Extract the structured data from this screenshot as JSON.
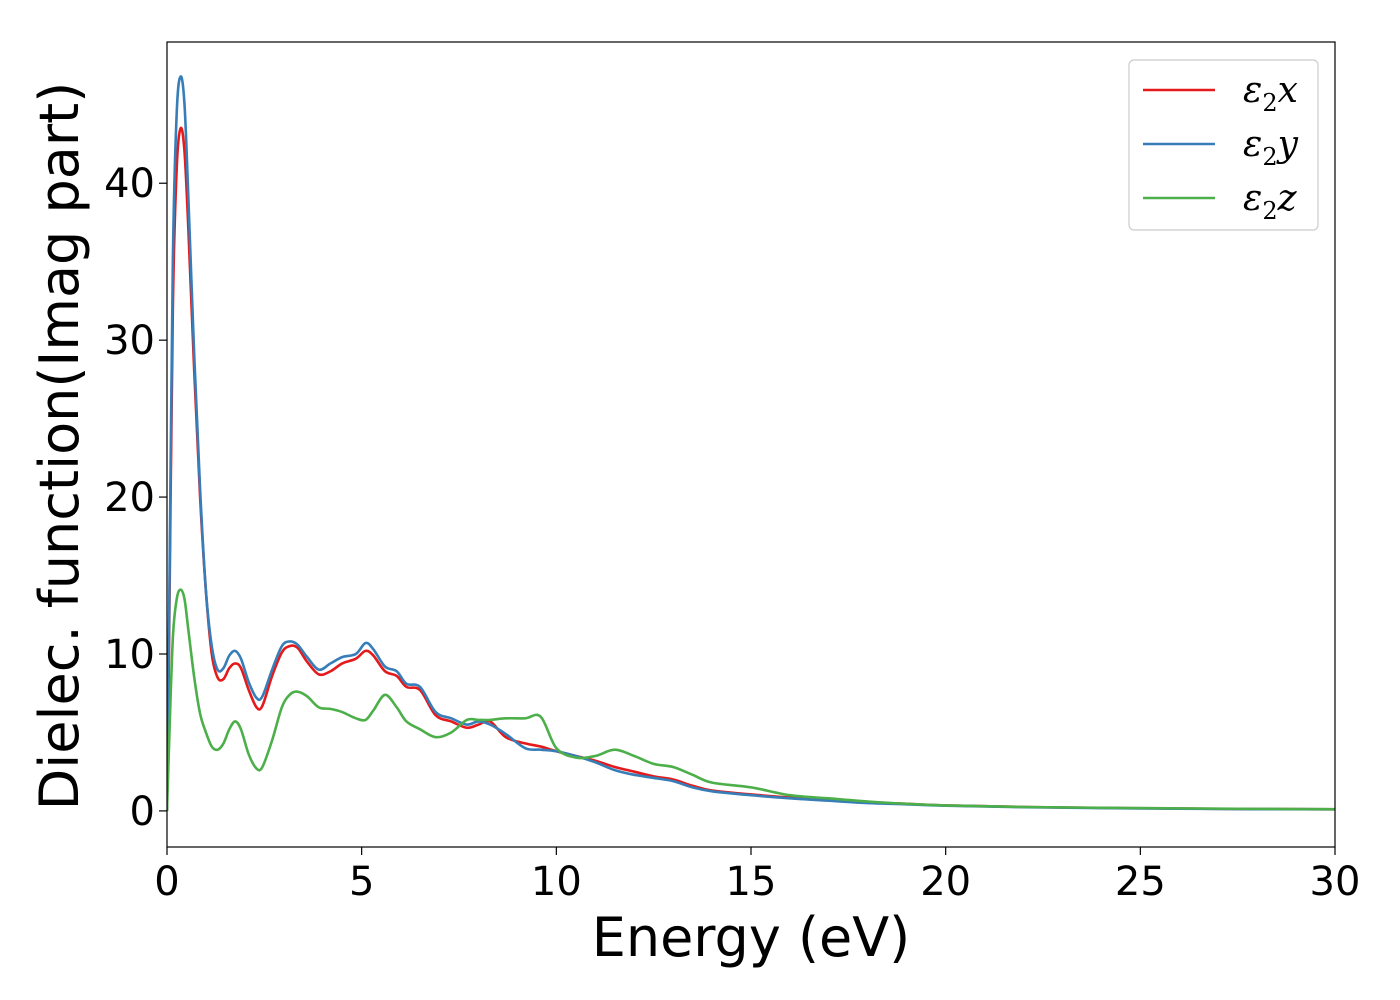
{
  "chart_data": {
    "type": "line",
    "xlabel": "Energy (eV)",
    "ylabel": "Dielec. function(Imag part)",
    "xlim": [
      0,
      30
    ],
    "ylim": [
      -2.3,
      49
    ],
    "xticks": [
      "0",
      "5",
      "10",
      "15",
      "20",
      "25",
      "30"
    ],
    "yticks": [
      "0",
      "10",
      "20",
      "30",
      "40"
    ],
    "grid": false,
    "legend_position": "top-right",
    "series": [
      {
        "name": "ε2x",
        "label_base": "ε",
        "label_sub": "2",
        "label_suffix": "x",
        "color": "#e41a1c",
        "points": [
          [
            0,
            0
          ],
          [
            0.05,
            10
          ],
          [
            0.15,
            32
          ],
          [
            0.25,
            41
          ],
          [
            0.35,
            43.5
          ],
          [
            0.45,
            42
          ],
          [
            0.55,
            37
          ],
          [
            0.7,
            28
          ],
          [
            0.85,
            20
          ],
          [
            1.0,
            14
          ],
          [
            1.15,
            10
          ],
          [
            1.3,
            8.5
          ],
          [
            1.45,
            8.4
          ],
          [
            1.6,
            9.1
          ],
          [
            1.75,
            9.4
          ],
          [
            1.9,
            9.1
          ],
          [
            2.1,
            7.7
          ],
          [
            2.3,
            6.6
          ],
          [
            2.45,
            6.7
          ],
          [
            2.7,
            8.6
          ],
          [
            2.95,
            10.1
          ],
          [
            3.15,
            10.5
          ],
          [
            3.35,
            10.4
          ],
          [
            3.6,
            9.5
          ],
          [
            3.9,
            8.7
          ],
          [
            4.2,
            8.9
          ],
          [
            4.5,
            9.4
          ],
          [
            4.85,
            9.7
          ],
          [
            5.1,
            10.2
          ],
          [
            5.3,
            9.9
          ],
          [
            5.6,
            8.9
          ],
          [
            5.9,
            8.6
          ],
          [
            6.15,
            7.9
          ],
          [
            6.5,
            7.7
          ],
          [
            6.9,
            6.1
          ],
          [
            7.3,
            5.7
          ],
          [
            7.7,
            5.3
          ],
          [
            8.0,
            5.5
          ],
          [
            8.3,
            5.7
          ],
          [
            8.7,
            4.7
          ],
          [
            9.2,
            4.3
          ],
          [
            9.6,
            4.1
          ],
          [
            10.0,
            3.8
          ],
          [
            10.5,
            3.5
          ],
          [
            11.0,
            3.2
          ],
          [
            11.5,
            2.8
          ],
          [
            12.0,
            2.5
          ],
          [
            12.5,
            2.2
          ],
          [
            13.0,
            2.0
          ],
          [
            13.5,
            1.6
          ],
          [
            14.0,
            1.3
          ],
          [
            15.0,
            1.05
          ],
          [
            16.0,
            0.85
          ],
          [
            17.0,
            0.7
          ],
          [
            18.0,
            0.55
          ],
          [
            19.0,
            0.45
          ],
          [
            20.0,
            0.35
          ],
          [
            22.0,
            0.25
          ],
          [
            25.0,
            0.17
          ],
          [
            28.0,
            0.12
          ],
          [
            30.0,
            0.1
          ]
        ]
      },
      {
        "name": "ε2y",
        "label_base": "ε",
        "label_sub": "2",
        "label_suffix": "y",
        "color": "#377eb8",
        "points": [
          [
            0,
            0
          ],
          [
            0.05,
            11
          ],
          [
            0.15,
            35
          ],
          [
            0.25,
            44.5
          ],
          [
            0.35,
            46.8
          ],
          [
            0.45,
            45
          ],
          [
            0.55,
            39
          ],
          [
            0.7,
            29
          ],
          [
            0.85,
            20.5
          ],
          [
            1.0,
            14
          ],
          [
            1.15,
            10.5
          ],
          [
            1.3,
            9.0
          ],
          [
            1.45,
            9.1
          ],
          [
            1.6,
            9.9
          ],
          [
            1.75,
            10.2
          ],
          [
            1.9,
            9.7
          ],
          [
            2.1,
            8.2
          ],
          [
            2.3,
            7.2
          ],
          [
            2.45,
            7.3
          ],
          [
            2.7,
            9.0
          ],
          [
            2.95,
            10.5
          ],
          [
            3.15,
            10.8
          ],
          [
            3.35,
            10.6
          ],
          [
            3.6,
            9.8
          ],
          [
            3.9,
            9.0
          ],
          [
            4.2,
            9.4
          ],
          [
            4.5,
            9.8
          ],
          [
            4.85,
            10.0
          ],
          [
            5.1,
            10.7
          ],
          [
            5.3,
            10.3
          ],
          [
            5.6,
            9.2
          ],
          [
            5.9,
            8.9
          ],
          [
            6.15,
            8.1
          ],
          [
            6.5,
            7.9
          ],
          [
            6.9,
            6.3
          ],
          [
            7.3,
            5.9
          ],
          [
            7.7,
            5.5
          ],
          [
            8.0,
            5.7
          ],
          [
            8.3,
            5.5
          ],
          [
            8.7,
            4.9
          ],
          [
            9.2,
            4.0
          ],
          [
            9.6,
            3.9
          ],
          [
            10.0,
            3.8
          ],
          [
            10.5,
            3.5
          ],
          [
            11.0,
            3.1
          ],
          [
            11.5,
            2.6
          ],
          [
            12.0,
            2.3
          ],
          [
            12.5,
            2.1
          ],
          [
            13.0,
            1.9
          ],
          [
            13.5,
            1.5
          ],
          [
            14.0,
            1.25
          ],
          [
            15.0,
            1.0
          ],
          [
            16.0,
            0.8
          ],
          [
            17.0,
            0.65
          ],
          [
            18.0,
            0.5
          ],
          [
            19.0,
            0.42
          ],
          [
            20.0,
            0.33
          ],
          [
            22.0,
            0.24
          ],
          [
            25.0,
            0.16
          ],
          [
            28.0,
            0.11
          ],
          [
            30.0,
            0.1
          ]
        ]
      },
      {
        "name": "ε2z",
        "label_base": "ε",
        "label_sub": "2",
        "label_suffix": "z",
        "color": "#4daf4a",
        "points": [
          [
            0,
            0
          ],
          [
            0.05,
            4
          ],
          [
            0.15,
            11
          ],
          [
            0.25,
            13.5
          ],
          [
            0.35,
            14.1
          ],
          [
            0.45,
            13.5
          ],
          [
            0.55,
            11.5
          ],
          [
            0.7,
            8.5
          ],
          [
            0.85,
            6.2
          ],
          [
            1.0,
            5.0
          ],
          [
            1.15,
            4.1
          ],
          [
            1.3,
            3.9
          ],
          [
            1.45,
            4.3
          ],
          [
            1.6,
            5.2
          ],
          [
            1.75,
            5.7
          ],
          [
            1.9,
            5.2
          ],
          [
            2.1,
            3.6
          ],
          [
            2.3,
            2.7
          ],
          [
            2.45,
            2.8
          ],
          [
            2.7,
            4.5
          ],
          [
            2.95,
            6.6
          ],
          [
            3.15,
            7.4
          ],
          [
            3.35,
            7.6
          ],
          [
            3.6,
            7.3
          ],
          [
            3.9,
            6.6
          ],
          [
            4.2,
            6.5
          ],
          [
            4.5,
            6.3
          ],
          [
            4.85,
            5.9
          ],
          [
            5.1,
            5.8
          ],
          [
            5.3,
            6.4
          ],
          [
            5.6,
            7.4
          ],
          [
            5.9,
            6.6
          ],
          [
            6.15,
            5.7
          ],
          [
            6.5,
            5.2
          ],
          [
            6.9,
            4.7
          ],
          [
            7.3,
            5.0
          ],
          [
            7.7,
            5.8
          ],
          [
            8.0,
            5.8
          ],
          [
            8.3,
            5.8
          ],
          [
            8.7,
            5.9
          ],
          [
            9.2,
            5.9
          ],
          [
            9.6,
            6.0
          ],
          [
            10.0,
            4.0
          ],
          [
            10.5,
            3.4
          ],
          [
            11.0,
            3.5
          ],
          [
            11.5,
            3.9
          ],
          [
            12.0,
            3.5
          ],
          [
            12.5,
            3.0
          ],
          [
            13.0,
            2.8
          ],
          [
            13.5,
            2.3
          ],
          [
            14.0,
            1.8
          ],
          [
            15.0,
            1.5
          ],
          [
            16.0,
            1.0
          ],
          [
            17.0,
            0.8
          ],
          [
            18.0,
            0.6
          ],
          [
            19.0,
            0.45
          ],
          [
            20.0,
            0.35
          ],
          [
            22.0,
            0.25
          ],
          [
            25.0,
            0.18
          ],
          [
            28.0,
            0.13
          ],
          [
            30.0,
            0.11
          ]
        ]
      }
    ]
  }
}
